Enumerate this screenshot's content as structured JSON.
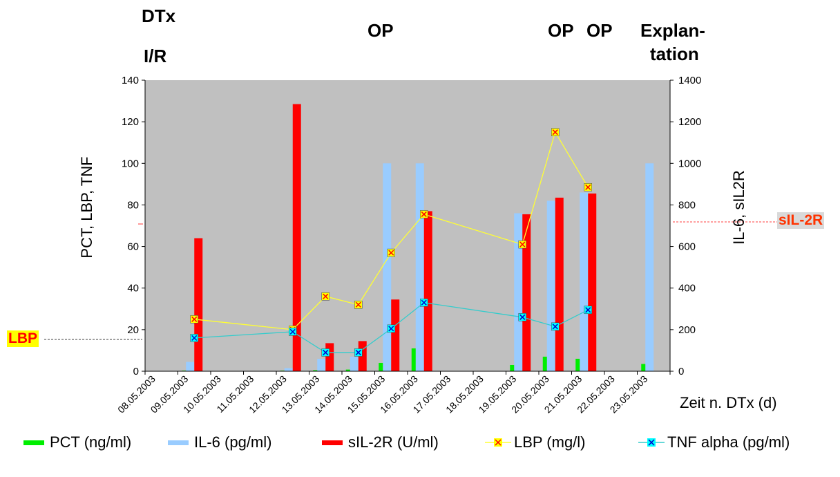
{
  "annotations": {
    "dtx_line1": "DTx",
    "dtx_line2": "I/R",
    "op1": "OP",
    "op2": "OP",
    "op3": "OP",
    "explanation_line1": "Explan-",
    "explanation_line2": "tation",
    "lbp_badge": "LBP",
    "sil2r_badge": "sIL-2R"
  },
  "colors": {
    "plot_background": "#c0c0c0",
    "pct": "#00ee00",
    "il6": "#99ccff",
    "sil2r": "#ff0000",
    "lbp_line": "#ffff33",
    "lbp_marker_fill": "#ffff00",
    "lbp_marker_x": "#ff0000",
    "tnf_line": "#33cccc",
    "tnf_marker_fill": "#00ffff",
    "tnf_marker_x": "#0000cc",
    "lbp_badge_bg": "#ffff00",
    "lbp_badge_text": "#ff0000",
    "sil2r_badge_bg": "#d9d9d9",
    "sil2r_badge_text": "#ff3300"
  },
  "chart_data": {
    "type": "bar",
    "title": "",
    "categories": [
      "08.05.2003",
      "09.05.2003",
      "10.05.2003",
      "11.05.2003",
      "12.05.2003",
      "13.05.2003",
      "14.05.2003",
      "15.05.2003",
      "16.05.2003",
      "17.05.2003",
      "18.05.2003",
      "19.05.2003",
      "20.05.2003",
      "21.05.2003",
      "22.05.2003",
      "23.05.2003"
    ],
    "xlabel": "Zeit n. DTx (d)",
    "ylabel": "PCT, LBP, TNF",
    "y2label": "IL-6, sIL2R",
    "ylim": [
      0,
      140
    ],
    "y2lim": [
      0,
      1400
    ],
    "yticks": [
      0,
      20,
      40,
      60,
      80,
      100,
      120,
      140
    ],
    "y2ticks": [
      0,
      200,
      400,
      600,
      800,
      1000,
      1200,
      1400
    ],
    "grid": false,
    "legend_position": "bottom",
    "series": [
      {
        "name": "PCT (ng/ml)",
        "type": "bar",
        "axis": "left",
        "values": [
          null,
          0.3,
          null,
          null,
          0.3,
          0.5,
          0.8,
          4,
          11,
          null,
          null,
          3,
          7,
          6,
          null,
          3.5
        ]
      },
      {
        "name": "IL-6 (pg/ml)",
        "type": "bar",
        "axis": "right",
        "values": [
          null,
          45,
          null,
          null,
          15,
          60,
          70,
          1000,
          1000,
          null,
          null,
          760,
          820,
          860,
          null,
          1000
        ]
      },
      {
        "name": "sIL-2R (U/ml)",
        "type": "bar",
        "axis": "right",
        "values": [
          null,
          640,
          null,
          null,
          1285,
          135,
          145,
          345,
          770,
          null,
          null,
          755,
          835,
          855,
          null,
          null
        ]
      },
      {
        "name": "LBP (mg/l)",
        "type": "line",
        "axis": "left",
        "values": [
          null,
          25,
          null,
          null,
          20,
          36,
          32,
          57,
          75.5,
          null,
          null,
          61,
          115,
          88.5,
          null,
          null
        ]
      },
      {
        "name": "TNF alpha (pg/ml)",
        "type": "line",
        "axis": "left",
        "values": [
          null,
          16,
          null,
          null,
          19,
          9,
          9,
          20.5,
          33,
          null,
          null,
          26,
          21.5,
          29.5,
          null,
          null
        ]
      }
    ]
  }
}
